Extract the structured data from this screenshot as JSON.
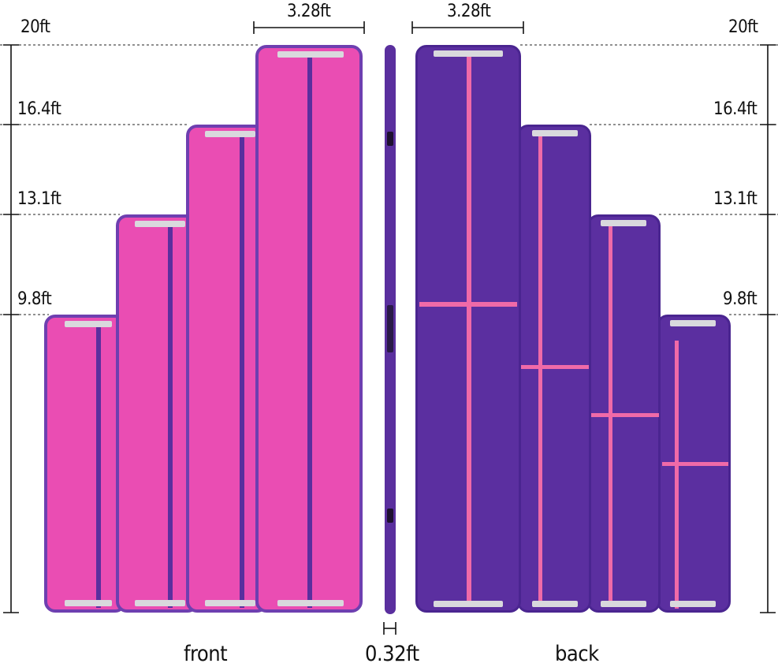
{
  "height_labels": {
    "left": [
      "20ft",
      "16.4ft",
      "13.1ft",
      "9.8ft"
    ],
    "right": [
      "20ft",
      "16.4ft",
      "13.1ft",
      "9.8ft"
    ]
  },
  "width_labels": {
    "front": "3.28ft",
    "back": "3.28ft"
  },
  "thickness_label": "0.32ft",
  "captions": {
    "front": "front",
    "back": "back"
  },
  "colors": {
    "front_surface": "#ea4db3",
    "front_stripe": "#5a2f9e",
    "back_surface": "#5b2fa0",
    "back_stripe": "#f06aa8",
    "handle": "#d9d9dd"
  }
}
